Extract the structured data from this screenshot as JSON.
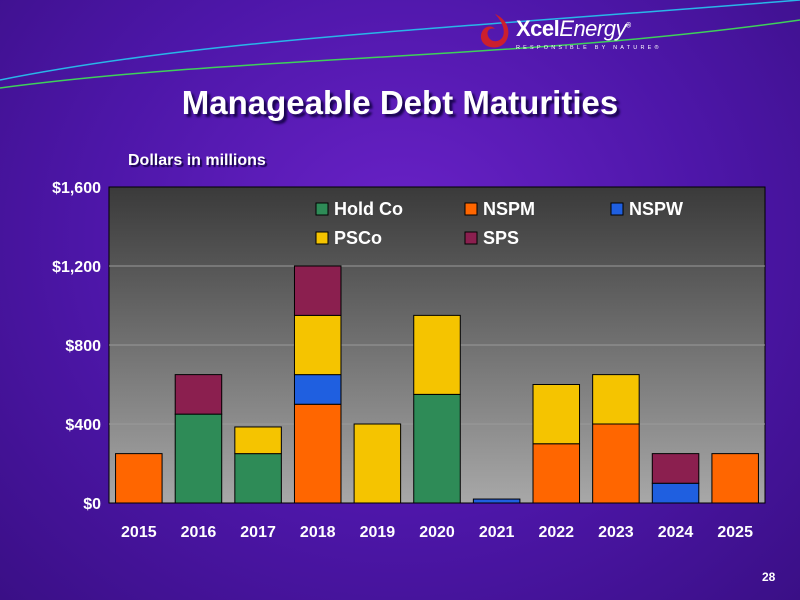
{
  "brand": {
    "name_bold": "Xcel",
    "name_light": "Energy",
    "registered": "®",
    "tagline": "RESPONSIBLE BY NATURE®",
    "logo_color": "#cc1f2d"
  },
  "slide": {
    "title": "Manageable Debt Maturities",
    "subtitle": "Dollars in millions",
    "page_number": "28"
  },
  "chart_data": {
    "type": "bar",
    "stacked": true,
    "categories": [
      "2015",
      "2016",
      "2017",
      "2018",
      "2019",
      "2020",
      "2021",
      "2022",
      "2023",
      "2024",
      "2025"
    ],
    "series": [
      {
        "name": "Hold Co",
        "color": "#2e8b57",
        "values": [
          0,
          450,
          250,
          0,
          0,
          550,
          0,
          0,
          0,
          0,
          0
        ]
      },
      {
        "name": "NSPM",
        "color": "#ff6600",
        "values": [
          250,
          0,
          0,
          500,
          0,
          0,
          0,
          300,
          400,
          0,
          250
        ]
      },
      {
        "name": "NSPW",
        "color": "#1f5fe0",
        "values": [
          0,
          0,
          0,
          150,
          0,
          0,
          20,
          0,
          0,
          100,
          0
        ]
      },
      {
        "name": "PSCo",
        "color": "#f5c400",
        "values": [
          0,
          0,
          135,
          300,
          400,
          400,
          0,
          300,
          250,
          0,
          0
        ]
      },
      {
        "name": "SPS",
        "color": "#8b1f4f",
        "values": [
          0,
          200,
          0,
          250,
          0,
          0,
          0,
          0,
          0,
          150,
          0
        ]
      }
    ],
    "y_ticks": [
      "$0",
      "$400",
      "$800",
      "$1,200",
      "$1,600"
    ],
    "ylim": [
      0,
      1600
    ],
    "grid": true,
    "legend_position": "top-right"
  }
}
